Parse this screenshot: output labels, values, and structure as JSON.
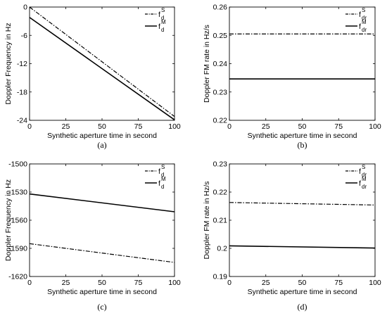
{
  "chart_data": [
    {
      "panel_label": "(a)",
      "type": "line",
      "xlabel": "Synthetic aperture time in second",
      "ylabel": "Doppler Frequency  in Hz",
      "xlim": [
        0,
        100
      ],
      "ylim": [
        -24,
        0
      ],
      "xticks": [
        "0",
        "25",
        "50",
        "75",
        "100"
      ],
      "yticks": [
        "-24",
        "-18",
        "-12",
        "-6",
        "0"
      ],
      "legend_position": "top-right",
      "series": [
        {
          "name": "f_d^S",
          "label_main": "f",
          "label_sup": "S",
          "label_sub": "d",
          "style": "dash-dot",
          "x": [
            0,
            100
          ],
          "y": [
            0,
            -23.2
          ]
        },
        {
          "name": "f_d^M",
          "label_main": "f",
          "label_sup": "M",
          "label_sub": "d",
          "style": "solid",
          "x": [
            0,
            100
          ],
          "y": [
            -2.2,
            -23.9
          ]
        }
      ]
    },
    {
      "panel_label": "(b)",
      "type": "line",
      "xlabel": "Synthetic aperture time in second",
      "ylabel": "Doppler FM rate in Hz/s",
      "xlim": [
        0,
        100
      ],
      "ylim": [
        0.22,
        0.26
      ],
      "xticks": [
        "0",
        "25",
        "50",
        "75",
        "100"
      ],
      "yticks": [
        "0.22",
        "0.23",
        "0.24",
        "0.25",
        "0.26"
      ],
      "legend_position": "top-right",
      "series": [
        {
          "name": "f_dr^S",
          "label_main": "f",
          "label_sup": "S",
          "label_sub": "dr",
          "style": "dash-dot",
          "x": [
            0,
            100
          ],
          "y": [
            0.2505,
            0.2505
          ]
        },
        {
          "name": "f_dr^M",
          "label_main": "f",
          "label_sup": "M",
          "label_sub": "dr",
          "style": "solid",
          "x": [
            0,
            100
          ],
          "y": [
            0.2346,
            0.2346
          ]
        }
      ]
    },
    {
      "panel_label": "(c)",
      "type": "line",
      "xlabel": "Synthetic aperture time in second",
      "ylabel": "Doppler Frequency  in Hz",
      "xlim": [
        0,
        100
      ],
      "ylim": [
        -1620,
        -1500
      ],
      "xticks": [
        "0",
        "25",
        "50",
        "75",
        "100"
      ],
      "yticks": [
        "-1620",
        "-1590",
        "-1560",
        "-1530",
        "-1500"
      ],
      "legend_position": "top-right",
      "series": [
        {
          "name": "f_d^S",
          "label_main": "f",
          "label_sup": "S",
          "label_sub": "d",
          "style": "dash-dot",
          "x": [
            0,
            100
          ],
          "y": [
            -1585,
            -1605
          ]
        },
        {
          "name": "f_d^M",
          "label_main": "f",
          "label_sup": "M",
          "label_sub": "d",
          "style": "solid",
          "x": [
            0,
            100
          ],
          "y": [
            -1532,
            -1551
          ]
        }
      ]
    },
    {
      "panel_label": "(d)",
      "type": "line",
      "xlabel": "Synthetic aperture time in second",
      "ylabel": "Doppler FM rate in Hz/s",
      "xlim": [
        0,
        100
      ],
      "ylim": [
        0.19,
        0.23
      ],
      "xticks": [
        "0",
        "25",
        "50",
        "75",
        "100"
      ],
      "yticks": [
        "0.19",
        "0.2",
        "0.21",
        "0.22",
        "0.23"
      ],
      "legend_position": "top-right",
      "series": [
        {
          "name": "f_dr^S",
          "label_main": "f",
          "label_sup": "S",
          "label_sub": "dr",
          "style": "dash-dot",
          "x": [
            0,
            100
          ],
          "y": [
            0.2163,
            0.2154
          ]
        },
        {
          "name": "f_dr^M",
          "label_main": "f",
          "label_sup": "M",
          "label_sub": "dr",
          "style": "solid",
          "x": [
            0,
            100
          ],
          "y": [
            0.2009,
            0.2001
          ]
        }
      ]
    }
  ]
}
